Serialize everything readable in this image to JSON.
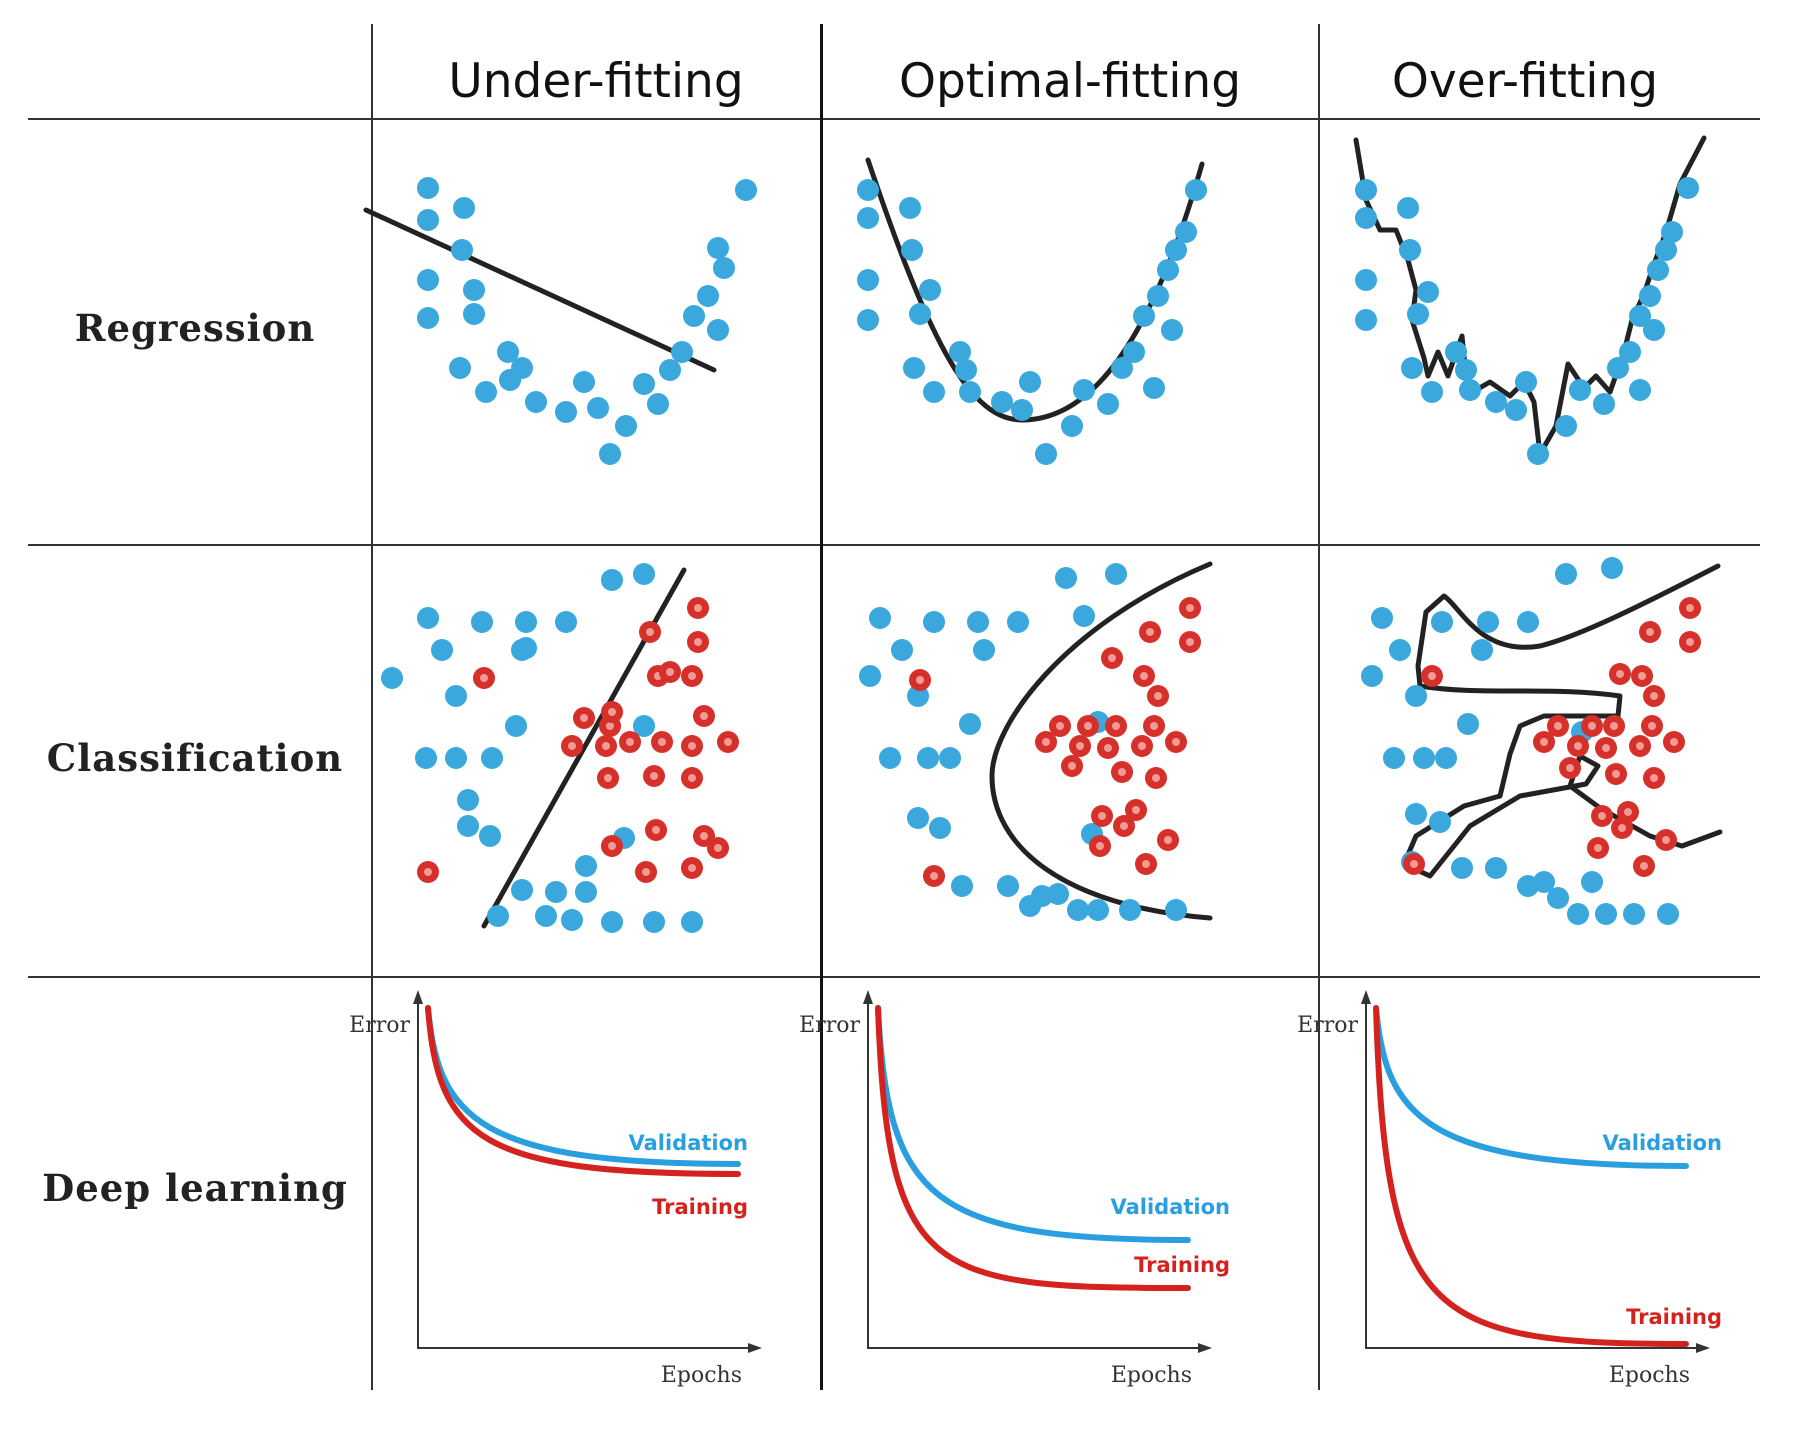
{
  "columns": [
    "Under-fitting",
    "Optimal-fitting",
    "Over-fitting"
  ],
  "rows": [
    "Regression",
    "Classification",
    "Deep learning"
  ],
  "colors": {
    "point_blue": "#3aa7dd",
    "point_red": "#d6302b",
    "fit_line": "#222222",
    "validation": "#2a9fe0",
    "training": "#d4231f",
    "grid_line": "#333333"
  },
  "deep_learning": {
    "y_axis_label": "Error",
    "x_axis_label": "Epochs",
    "panels": [
      {
        "validation_label": "Validation",
        "training_label": "Training"
      },
      {
        "validation_label": "Validation",
        "training_label": "Training"
      },
      {
        "validation_label": "Validation",
        "training_label": "Training"
      }
    ]
  }
}
